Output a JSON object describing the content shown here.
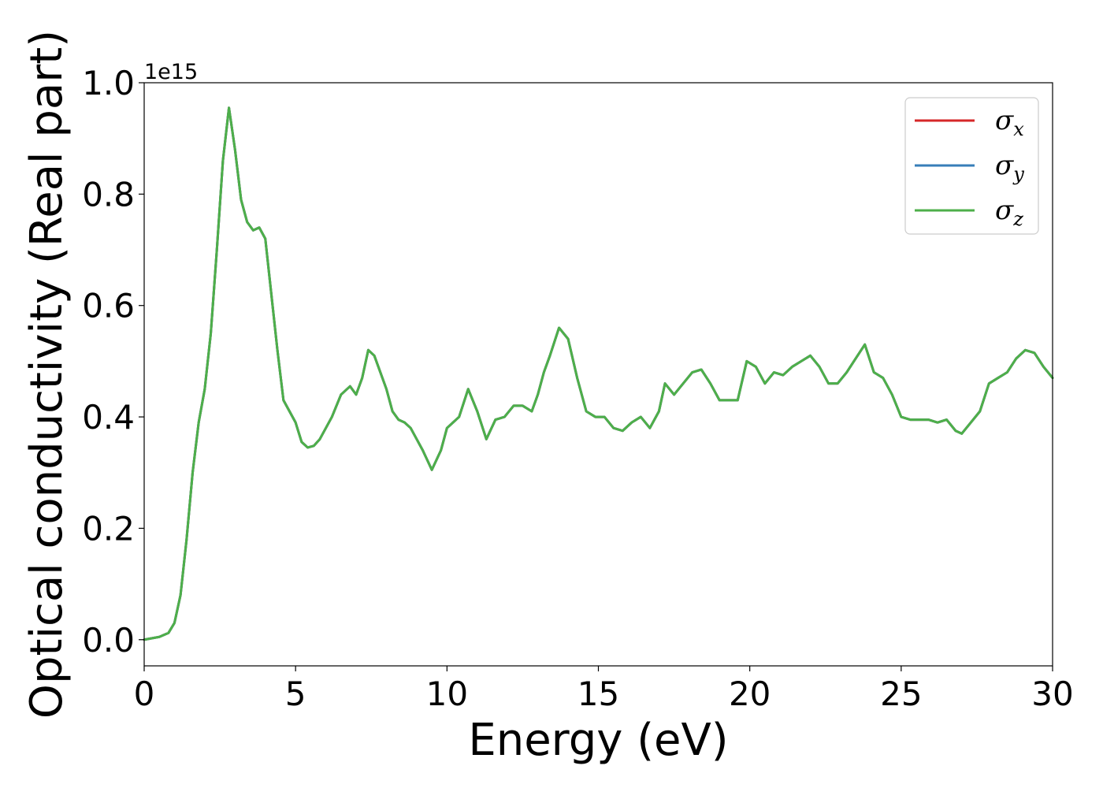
{
  "chart_data": {
    "type": "line",
    "title": "",
    "xlabel": "Energy (eV)",
    "ylabel": "Optical conductivity (Real part)",
    "y_offset_label": "1e15",
    "xlim": [
      0,
      30
    ],
    "ylim": [
      -0.047,
      1.0
    ],
    "xticks": [
      0,
      5,
      10,
      15,
      20,
      25,
      30
    ],
    "xtick_labels": [
      "0",
      "5",
      "10",
      "15",
      "20",
      "25",
      "30"
    ],
    "yticks": [
      0.0,
      0.2,
      0.4,
      0.6,
      0.8,
      1.0
    ],
    "ytick_labels": [
      "0.0",
      "0.2",
      "0.4",
      "0.6",
      "0.8",
      "1.0"
    ],
    "grid": false,
    "legend_position": "top-right",
    "x": [
      0,
      0.5,
      0.8,
      1.0,
      1.2,
      1.4,
      1.6,
      1.8,
      2.0,
      2.2,
      2.4,
      2.6,
      2.8,
      3.0,
      3.2,
      3.4,
      3.6,
      3.8,
      4.0,
      4.2,
      4.4,
      4.6,
      4.8,
      5.0,
      5.2,
      5.4,
      5.6,
      5.8,
      6.0,
      6.2,
      6.5,
      6.8,
      7.0,
      7.2,
      7.4,
      7.6,
      7.8,
      8.0,
      8.2,
      8.4,
      8.6,
      8.8,
      9.0,
      9.2,
      9.5,
      9.8,
      10.0,
      10.2,
      10.4,
      10.7,
      11.0,
      11.3,
      11.6,
      11.9,
      12.2,
      12.5,
      12.8,
      13.0,
      13.2,
      13.4,
      13.7,
      14.0,
      14.3,
      14.6,
      14.9,
      15.2,
      15.5,
      15.8,
      16.1,
      16.4,
      16.7,
      17.0,
      17.2,
      17.5,
      17.8,
      18.1,
      18.4,
      18.7,
      19.0,
      19.3,
      19.6,
      19.9,
      20.2,
      20.5,
      20.8,
      21.1,
      21.4,
      21.7,
      22.0,
      22.3,
      22.6,
      22.9,
      23.2,
      23.5,
      23.8,
      24.1,
      24.4,
      24.7,
      25.0,
      25.3,
      25.6,
      25.9,
      26.2,
      26.5,
      26.8,
      27.0,
      27.3,
      27.6,
      27.9,
      28.2,
      28.5,
      28.8,
      29.1,
      29.4,
      29.7,
      30.0
    ],
    "series": [
      {
        "name": "σ",
        "subscript": "x",
        "color": "#d62728",
        "values": [
          0.0,
          0.005,
          0.012,
          0.03,
          0.08,
          0.18,
          0.3,
          0.39,
          0.45,
          0.55,
          0.7,
          0.86,
          0.955,
          0.88,
          0.79,
          0.75,
          0.735,
          0.74,
          0.72,
          0.62,
          0.52,
          0.43,
          0.41,
          0.39,
          0.355,
          0.345,
          0.348,
          0.36,
          0.38,
          0.4,
          0.44,
          0.455,
          0.44,
          0.47,
          0.52,
          0.51,
          0.48,
          0.45,
          0.41,
          0.395,
          0.39,
          0.38,
          0.36,
          0.34,
          0.305,
          0.34,
          0.38,
          0.39,
          0.4,
          0.45,
          0.41,
          0.36,
          0.395,
          0.4,
          0.42,
          0.42,
          0.41,
          0.44,
          0.48,
          0.51,
          0.56,
          0.54,
          0.47,
          0.41,
          0.4,
          0.4,
          0.38,
          0.375,
          0.39,
          0.4,
          0.38,
          0.41,
          0.46,
          0.44,
          0.46,
          0.48,
          0.485,
          0.46,
          0.43,
          0.43,
          0.43,
          0.5,
          0.49,
          0.46,
          0.48,
          0.475,
          0.49,
          0.5,
          0.51,
          0.49,
          0.46,
          0.46,
          0.48,
          0.505,
          0.53,
          0.48,
          0.47,
          0.44,
          0.4,
          0.395,
          0.395,
          0.395,
          0.39,
          0.395,
          0.375,
          0.37,
          0.39,
          0.41,
          0.46,
          0.47,
          0.48,
          0.505,
          0.52,
          0.515,
          0.49,
          0.47
        ]
      },
      {
        "name": "σ",
        "subscript": "y",
        "color": "#377eb8",
        "values": [
          0.0,
          0.005,
          0.012,
          0.03,
          0.08,
          0.18,
          0.3,
          0.39,
          0.45,
          0.55,
          0.7,
          0.86,
          0.955,
          0.88,
          0.79,
          0.75,
          0.735,
          0.74,
          0.72,
          0.62,
          0.52,
          0.43,
          0.41,
          0.39,
          0.355,
          0.345,
          0.348,
          0.36,
          0.38,
          0.4,
          0.44,
          0.455,
          0.44,
          0.47,
          0.52,
          0.51,
          0.48,
          0.45,
          0.41,
          0.395,
          0.39,
          0.38,
          0.36,
          0.34,
          0.305,
          0.34,
          0.38,
          0.39,
          0.4,
          0.45,
          0.41,
          0.36,
          0.395,
          0.4,
          0.42,
          0.42,
          0.41,
          0.44,
          0.48,
          0.51,
          0.56,
          0.54,
          0.47,
          0.41,
          0.4,
          0.4,
          0.38,
          0.375,
          0.39,
          0.4,
          0.38,
          0.41,
          0.46,
          0.44,
          0.46,
          0.48,
          0.485,
          0.46,
          0.43,
          0.43,
          0.43,
          0.5,
          0.49,
          0.46,
          0.48,
          0.475,
          0.49,
          0.5,
          0.51,
          0.49,
          0.46,
          0.46,
          0.48,
          0.505,
          0.53,
          0.48,
          0.47,
          0.44,
          0.4,
          0.395,
          0.395,
          0.395,
          0.39,
          0.395,
          0.375,
          0.37,
          0.39,
          0.41,
          0.46,
          0.47,
          0.48,
          0.505,
          0.52,
          0.515,
          0.49,
          0.47
        ]
      },
      {
        "name": "σ",
        "subscript": "z",
        "color": "#4daf4a",
        "values": [
          0.0,
          0.005,
          0.012,
          0.03,
          0.08,
          0.18,
          0.3,
          0.39,
          0.45,
          0.55,
          0.7,
          0.86,
          0.955,
          0.88,
          0.79,
          0.75,
          0.735,
          0.74,
          0.72,
          0.62,
          0.52,
          0.43,
          0.41,
          0.39,
          0.355,
          0.345,
          0.348,
          0.36,
          0.38,
          0.4,
          0.44,
          0.455,
          0.44,
          0.47,
          0.52,
          0.51,
          0.48,
          0.45,
          0.41,
          0.395,
          0.39,
          0.38,
          0.36,
          0.34,
          0.305,
          0.34,
          0.38,
          0.39,
          0.4,
          0.45,
          0.41,
          0.36,
          0.395,
          0.4,
          0.42,
          0.42,
          0.41,
          0.44,
          0.48,
          0.51,
          0.56,
          0.54,
          0.47,
          0.41,
          0.4,
          0.4,
          0.38,
          0.375,
          0.39,
          0.4,
          0.38,
          0.41,
          0.46,
          0.44,
          0.46,
          0.48,
          0.485,
          0.46,
          0.43,
          0.43,
          0.43,
          0.5,
          0.49,
          0.46,
          0.48,
          0.475,
          0.49,
          0.5,
          0.51,
          0.49,
          0.46,
          0.46,
          0.48,
          0.505,
          0.53,
          0.48,
          0.47,
          0.44,
          0.4,
          0.395,
          0.395,
          0.395,
          0.39,
          0.395,
          0.375,
          0.37,
          0.39,
          0.41,
          0.46,
          0.47,
          0.48,
          0.505,
          0.52,
          0.515,
          0.49,
          0.47
        ]
      }
    ]
  }
}
